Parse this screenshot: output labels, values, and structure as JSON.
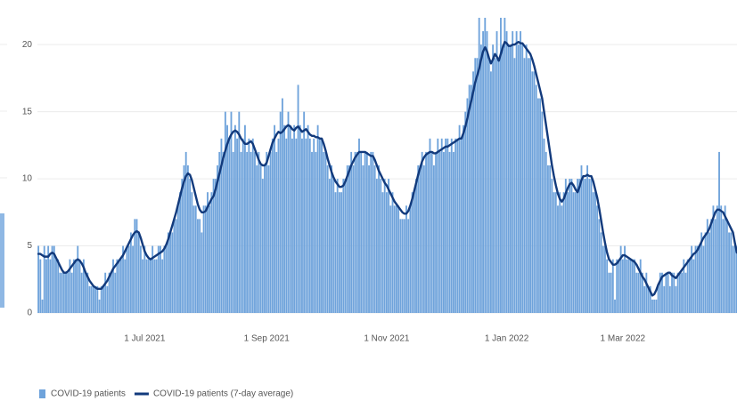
{
  "chart_data": {
    "type": "bar",
    "categories": [
      null,
      null,
      null,
      null,
      null,
      null,
      null,
      null,
      null,
      null,
      null,
      null,
      null,
      null,
      null,
      null,
      null,
      null,
      null,
      null,
      null,
      null,
      null,
      null,
      null,
      null,
      null,
      null,
      null,
      null,
      null,
      null,
      null,
      null,
      null,
      null,
      null,
      null,
      null,
      null,
      null,
      null,
      null,
      null,
      null,
      null,
      null,
      null,
      null,
      null,
      null,
      null,
      null,
      null,
      "1 Jul 2021",
      null,
      null,
      null,
      null,
      null,
      null,
      null,
      null,
      null,
      null,
      null,
      null,
      null,
      null,
      null,
      null,
      null,
      null,
      null,
      null,
      null,
      null,
      null,
      null,
      null,
      null,
      null,
      null,
      null,
      null,
      null,
      null,
      null,
      null,
      null,
      null,
      null,
      null,
      null,
      null,
      null,
      null,
      null,
      null,
      null,
      null,
      null,
      null,
      null,
      null,
      null,
      null,
      null,
      null,
      null,
      null,
      null,
      null,
      null,
      null,
      null,
      "1 Sep 2021",
      null,
      null,
      null,
      null,
      null,
      null,
      null,
      null,
      null,
      null,
      null,
      null,
      null,
      null,
      null,
      null,
      null,
      null,
      null,
      null,
      null,
      null,
      null,
      null,
      null,
      null,
      null,
      null,
      null,
      null,
      null,
      null,
      null,
      null,
      null,
      null,
      null,
      null,
      null,
      null,
      null,
      null,
      null,
      null,
      null,
      null,
      null,
      null,
      null,
      null,
      null,
      null,
      null,
      null,
      null,
      null,
      null,
      null,
      null,
      null,
      "1 Nov 2021",
      null,
      null,
      null,
      null,
      null,
      null,
      null,
      null,
      null,
      null,
      null,
      null,
      null,
      null,
      null,
      null,
      null,
      null,
      null,
      null,
      null,
      null,
      null,
      null,
      null,
      null,
      null,
      null,
      null,
      null,
      null,
      null,
      null,
      null,
      null,
      null,
      null,
      null,
      null,
      null,
      null,
      null,
      null,
      null,
      null,
      null,
      null,
      null,
      null,
      null,
      null,
      null,
      null,
      null,
      null,
      null,
      null,
      null,
      null,
      null,
      "1 Jan 2022",
      null,
      null,
      null,
      null,
      null,
      null,
      null,
      null,
      null,
      null,
      null,
      null,
      null,
      null,
      null,
      null,
      null,
      null,
      null,
      null,
      null,
      null,
      null,
      null,
      null,
      null,
      null,
      null,
      null,
      null,
      null,
      null,
      null,
      null,
      null,
      null,
      null,
      null,
      null,
      null,
      null,
      null,
      null,
      null,
      null,
      null,
      null,
      null,
      null,
      null,
      null,
      null,
      null,
      null,
      null,
      null,
      null,
      null,
      "1 Mar 2022",
      null,
      null,
      null,
      null,
      null,
      null,
      null,
      null,
      null,
      null,
      null,
      null,
      null,
      null,
      null,
      null,
      null,
      null,
      null,
      null,
      null,
      null,
      null,
      null,
      null,
      null,
      null,
      null,
      null,
      null,
      null,
      null,
      null,
      null,
      null,
      null,
      null,
      null,
      null,
      null,
      null,
      null,
      null,
      null,
      null,
      null,
      null,
      null,
      null,
      null,
      null,
      null,
      null,
      null,
      null,
      null,
      null,
      null
    ],
    "series": [
      {
        "name": "COVID-19 patients",
        "type": "bar",
        "color": "#6fa3db",
        "values": [
          5,
          4,
          1,
          5,
          4,
          5,
          4,
          5,
          5,
          4,
          4,
          3,
          3,
          3,
          3,
          3,
          4,
          3,
          4,
          4,
          5,
          4,
          3,
          4,
          3,
          3,
          2,
          2,
          2,
          2,
          2,
          1,
          2,
          2,
          3,
          2,
          3,
          3,
          4,
          3,
          4,
          4,
          4,
          5,
          4,
          5,
          5,
          6,
          5,
          7,
          7,
          6,
          5,
          4,
          5,
          4,
          4,
          4,
          5,
          4,
          4,
          5,
          5,
          4,
          5,
          5,
          6,
          6,
          6,
          7,
          7,
          8,
          9,
          10,
          11,
          12,
          11,
          10,
          9,
          8,
          8,
          7,
          7,
          6,
          8,
          8,
          9,
          8,
          9,
          10,
          10,
          11,
          12,
          13,
          12,
          15,
          14,
          13,
          15,
          12,
          14,
          13,
          15,
          12,
          13,
          14,
          12,
          13,
          12,
          13,
          12,
          11,
          12,
          11,
          10,
          11,
          12,
          11,
          12,
          13,
          14,
          12,
          13,
          15,
          16,
          14,
          13,
          15,
          14,
          13,
          14,
          13,
          17,
          14,
          13,
          15,
          13,
          14,
          13,
          12,
          13,
          12,
          14,
          13,
          13,
          12,
          12,
          11,
          10,
          11,
          10,
          9,
          10,
          9,
          9,
          10,
          10,
          11,
          11,
          12,
          11,
          12,
          12,
          13,
          12,
          11,
          12,
          12,
          11,
          12,
          12,
          11,
          10,
          11,
          10,
          9,
          10,
          9,
          10,
          8,
          9,
          8,
          8,
          8,
          7,
          7,
          7,
          8,
          7,
          8,
          9,
          9,
          10,
          11,
          11,
          12,
          11,
          12,
          12,
          13,
          12,
          11,
          12,
          13,
          12,
          13,
          12,
          13,
          13,
          12,
          13,
          12,
          13,
          13,
          14,
          13,
          14,
          15,
          16,
          17,
          17,
          18,
          19,
          19,
          22,
          20,
          21,
          22,
          21,
          19,
          18,
          20,
          19,
          21,
          19,
          22,
          20,
          22,
          21,
          20,
          20,
          21,
          19,
          21,
          20,
          21,
          20,
          19,
          20,
          19,
          19,
          18,
          18,
          17,
          16,
          16,
          15,
          13,
          12,
          11,
          11,
          10,
          9,
          9,
          8,
          9,
          8,
          9,
          10,
          9,
          10,
          10,
          9,
          9,
          10,
          10,
          11,
          10,
          10,
          11,
          10,
          10,
          9,
          9,
          8,
          7,
          6,
          5,
          5,
          4,
          3,
          3,
          4,
          1,
          4,
          4,
          5,
          4,
          5,
          4,
          4,
          4,
          4,
          4,
          3,
          3,
          4,
          3,
          2,
          3,
          2,
          2,
          1,
          1,
          1,
          2,
          3,
          3,
          2,
          3,
          3,
          2,
          3,
          3,
          2,
          3,
          3,
          3,
          4,
          3,
          4,
          4,
          5,
          4,
          5,
          5,
          5,
          6,
          5,
          6,
          7,
          6,
          7,
          8,
          7,
          8,
          12,
          8,
          7,
          8,
          7,
          6,
          6,
          5,
          5,
          5
        ]
      },
      {
        "name": "COVID-19 patients (7-day average)",
        "type": "line",
        "color": "#123a7c",
        "values": [
          4.4,
          4.4,
          4.3,
          4.2,
          4.2,
          4.2,
          4.4,
          4.5,
          4.4,
          4.1,
          3.8,
          3.5,
          3.2,
          3.0,
          3.0,
          3.1,
          3.3,
          3.5,
          3.7,
          3.9,
          4.0,
          3.9,
          3.7,
          3.4,
          3.0,
          2.7,
          2.4,
          2.2,
          2.0,
          1.9,
          1.8,
          1.8,
          1.8,
          2.0,
          2.2,
          2.4,
          2.7,
          3.0,
          3.3,
          3.5,
          3.7,
          3.9,
          4.1,
          4.3,
          4.6,
          4.9,
          5.2,
          5.5,
          5.8,
          6.0,
          6.1,
          6.0,
          5.6,
          5.1,
          4.6,
          4.3,
          4.1,
          4.0,
          4.1,
          4.2,
          4.3,
          4.4,
          4.5,
          4.6,
          4.8,
          5.1,
          5.5,
          6.0,
          6.5,
          7.0,
          7.5,
          8.1,
          8.7,
          9.3,
          9.8,
          10.2,
          10.4,
          10.3,
          9.9,
          9.3,
          8.7,
          8.1,
          7.7,
          7.5,
          7.5,
          7.6,
          7.9,
          8.2,
          8.5,
          8.7,
          9.2,
          9.8,
          10.4,
          11.0,
          11.6,
          12.1,
          12.6,
          13.0,
          13.3,
          13.5,
          13.6,
          13.5,
          13.3,
          13.0,
          12.8,
          12.6,
          12.6,
          12.7,
          12.8,
          12.6,
          12.2,
          11.8,
          11.4,
          11.1,
          11.0,
          11.0,
          11.2,
          11.7,
          12.2,
          12.7,
          13.0,
          13.3,
          13.5,
          13.4,
          13.5,
          13.7,
          13.9,
          14.0,
          13.9,
          13.7,
          13.6,
          13.8,
          13.9,
          13.7,
          13.5,
          13.6,
          13.7,
          13.5,
          13.3,
          13.2,
          13.2,
          13.1,
          13.1,
          13.0,
          13.0,
          12.6,
          12.1,
          11.5,
          11.0,
          10.5,
          10.1,
          9.8,
          9.6,
          9.4,
          9.4,
          9.5,
          9.8,
          10.2,
          10.6,
          11.0,
          11.3,
          11.6,
          11.8,
          12.0,
          12.0,
          12.0,
          12.0,
          11.9,
          11.8,
          11.7,
          11.7,
          11.4,
          11.0,
          10.6,
          10.3,
          10.0,
          9.7,
          9.5,
          9.2,
          8.9,
          8.6,
          8.3,
          8.1,
          7.9,
          7.7,
          7.5,
          7.4,
          7.4,
          7.6,
          8.0,
          8.5,
          9.1,
          9.7,
          10.3,
          10.8,
          11.3,
          11.6,
          11.8,
          11.9,
          12.0,
          12.0,
          11.9,
          11.9,
          12.0,
          12.1,
          12.2,
          12.3,
          12.4,
          12.4,
          12.5,
          12.6,
          12.7,
          12.8,
          12.9,
          13.0,
          13.0,
          13.4,
          13.9,
          14.5,
          15.2,
          15.8,
          16.5,
          17.2,
          17.7,
          18.2,
          18.9,
          19.5,
          19.8,
          19.5,
          19.0,
          18.6,
          18.9,
          19.3,
          19.1,
          18.8,
          19.3,
          19.8,
          20.2,
          20.1,
          19.9,
          19.9,
          20.0,
          20.0,
          20.1,
          20.2,
          20.1,
          20.1,
          19.9,
          19.7,
          19.5,
          19.3,
          18.9,
          18.4,
          17.8,
          17.2,
          16.6,
          16.0,
          15.0,
          14.0,
          13.0,
          12.0,
          11.0,
          10.2,
          9.5,
          8.9,
          8.5,
          8.3,
          8.5,
          8.9,
          9.3,
          9.6,
          9.7,
          9.5,
          9.2,
          9.0,
          9.4,
          9.9,
          10.2,
          10.2,
          10.3,
          10.2,
          10.2,
          9.8,
          9.2,
          8.6,
          7.8,
          6.9,
          6.0,
          5.2,
          4.5,
          4.0,
          3.8,
          3.6,
          3.6,
          3.7,
          3.9,
          4.1,
          4.3,
          4.3,
          4.2,
          4.1,
          4.0,
          3.9,
          3.8,
          3.6,
          3.3,
          3.0,
          2.7,
          2.5,
          2.2,
          1.9,
          1.6,
          1.3,
          1.4,
          1.7,
          2.1,
          2.4,
          2.7,
          2.8,
          2.9,
          3.0,
          3.0,
          2.8,
          2.7,
          2.6,
          2.8,
          3.0,
          3.2,
          3.4,
          3.6,
          3.8,
          4.0,
          4.2,
          4.4,
          4.5,
          4.7,
          5.0,
          5.3,
          5.6,
          5.8,
          6.0,
          6.3,
          6.7,
          7.1,
          7.5,
          7.7,
          7.7,
          7.6,
          7.5,
          7.2,
          6.9,
          6.6,
          6.3,
          6.0,
          5.2,
          4.5
        ]
      }
    ],
    "ylim": [
      0,
      22
    ],
    "yticks": [
      0,
      5,
      10,
      15,
      20
    ],
    "grid": true,
    "legend": "bottom-left"
  }
}
